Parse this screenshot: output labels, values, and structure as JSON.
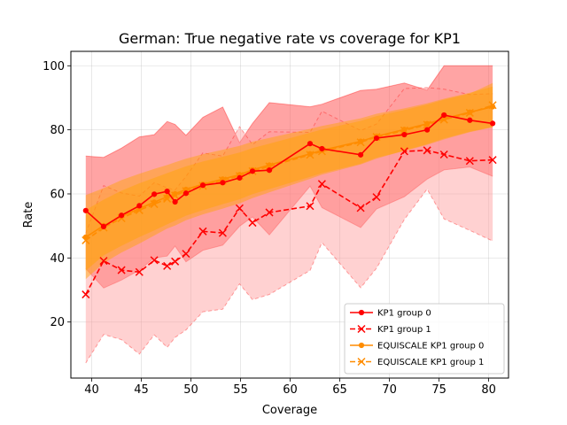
{
  "chart_data": {
    "type": "line",
    "title": "German: True negative rate vs coverage for KP1",
    "xlabel": "Coverage",
    "ylabel": "Rate",
    "xlim": [
      37.9,
      82.0
    ],
    "ylim": [
      2.5,
      104.5
    ],
    "xticks": [
      40,
      45,
      50,
      55,
      60,
      65,
      70,
      75,
      80
    ],
    "yticks": [
      20,
      40,
      60,
      80,
      100
    ],
    "grid": true,
    "legend_position": "lower-right",
    "colors": {
      "group0": "#ff0000",
      "group1": "#ff0000",
      "equi0": "#ff8c00",
      "equi1": "#ff8c00",
      "band_outer": "#ff9a9a",
      "band_inner": "#ff5a5a",
      "band_equi": "#ffa500"
    },
    "series": [
      {
        "name": "KP1 group 0",
        "line_style": "solid",
        "marker": "dot",
        "x": [
          39.4,
          41.2,
          43.0,
          44.8,
          46.3,
          47.6,
          48.4,
          49.5,
          51.2,
          53.2,
          54.9,
          56.2,
          57.9,
          62.0,
          63.2,
          67.1,
          68.7,
          71.5,
          73.8,
          75.5,
          78.1,
          80.4
        ],
        "y": [
          54.8,
          49.8,
          53.3,
          56.3,
          59.9,
          60.8,
          57.5,
          60.2,
          62.7,
          63.5,
          65.0,
          67.1,
          67.4,
          75.7,
          74.1,
          72.2,
          77.4,
          78.5,
          80.0,
          84.6,
          83.0,
          82.0
        ],
        "band_upper": [
          71.8,
          71.4,
          74.3,
          77.8,
          78.5,
          82.6,
          81.7,
          78.3,
          83.9,
          87.1,
          76.0,
          82.0,
          88.5,
          87.2,
          88.0,
          92.3,
          92.7,
          94.6,
          92.4,
          100.0,
          100.0,
          100.0
        ],
        "band_lower": [
          36.7,
          30.6,
          33.1,
          36.2,
          40.0,
          40.6,
          43.7,
          38.8,
          42.4,
          44.0,
          49.9,
          52.8,
          47.2,
          62.4,
          55.7,
          49.5,
          55.3,
          59.1,
          64.6,
          67.5,
          68.4,
          65.5
        ]
      },
      {
        "name": "KP1 group 1",
        "line_style": "dashed",
        "marker": "x",
        "x": [
          39.4,
          41.2,
          43.0,
          44.8,
          46.3,
          47.6,
          48.4,
          49.5,
          51.2,
          53.2,
          54.9,
          56.2,
          57.9,
          62.0,
          63.2,
          67.1,
          68.7,
          71.5,
          73.8,
          75.5,
          78.1,
          80.4
        ],
        "y": [
          28.6,
          39.1,
          36.2,
          35.6,
          39.3,
          37.5,
          38.9,
          41.3,
          48.3,
          47.8,
          55.5,
          51.0,
          54.2,
          56.2,
          63.1,
          55.6,
          59.0,
          73.3,
          73.6,
          72.3,
          70.3,
          70.6
        ],
        "band_upper": [
          47.7,
          62.6,
          60.3,
          59.3,
          63.5,
          61.9,
          61.2,
          65.4,
          72.8,
          71.8,
          81.0,
          75.4,
          79.4,
          79.2,
          85.8,
          79.8,
          81.8,
          92.9,
          93.2,
          92.7,
          91.0,
          91.3
        ],
        "band_lower": [
          7.2,
          16.1,
          14.5,
          10.0,
          16.0,
          12.1,
          15.2,
          17.5,
          23.2,
          24.0,
          31.9,
          27.0,
          28.6,
          36.1,
          44.8,
          30.7,
          36.8,
          52.0,
          61.5,
          52.2,
          48.6,
          45.3
        ]
      },
      {
        "name": "EQUISCALE KP1 group 0",
        "line_style": "solid",
        "marker": "dot",
        "x": [
          39.4,
          41.2,
          43.0,
          44.8,
          46.3,
          47.6,
          48.4,
          49.5,
          51.2,
          53.2,
          54.9,
          56.2,
          57.9,
          62.0,
          63.2,
          67.1,
          68.7,
          71.5,
          73.8,
          75.5,
          78.1,
          80.4
        ],
        "y": [
          46.5,
          50.1,
          53.0,
          55.4,
          57.4,
          59.1,
          60.0,
          61.4,
          63.0,
          64.6,
          66.0,
          67.5,
          69.0,
          72.5,
          73.6,
          76.4,
          78.0,
          80.1,
          81.9,
          83.5,
          85.5,
          87.2
        ],
        "band_upper": [
          59.6,
          61.8,
          64.3,
          66.3,
          67.8,
          69.0,
          69.9,
          71.0,
          72.4,
          73.8,
          75.0,
          76.3,
          77.5,
          80.3,
          81.2,
          83.6,
          85.0,
          86.7,
          88.3,
          89.7,
          91.6,
          93.5
        ],
        "band_lower": [
          33.4,
          38.4,
          41.7,
          44.5,
          47.0,
          49.2,
          50.1,
          51.8,
          53.6,
          55.4,
          57.0,
          58.7,
          60.5,
          64.7,
          66.0,
          69.2,
          71.0,
          73.5,
          75.5,
          77.3,
          79.4,
          80.9
        ]
      },
      {
        "name": "EQUISCALE KP1 group 1",
        "line_style": "dashed",
        "marker": "x",
        "x": [
          39.4,
          41.2,
          43.0,
          44.8,
          46.3,
          47.6,
          48.4,
          49.5,
          51.2,
          53.2,
          54.9,
          56.2,
          57.9,
          62.0,
          63.2,
          67.1,
          68.7,
          71.5,
          73.8,
          75.5,
          78.1,
          80.4
        ],
        "y": [
          45.5,
          49.5,
          52.4,
          54.9,
          56.8,
          58.5,
          59.5,
          60.9,
          62.5,
          64.2,
          65.6,
          67.1,
          68.6,
          72.2,
          73.3,
          76.1,
          77.8,
          79.8,
          81.6,
          83.2,
          85.3,
          87.7
        ],
        "band_upper": [
          55.0,
          58.2,
          61.0,
          63.3,
          65.0,
          66.5,
          67.4,
          68.6,
          70.1,
          71.6,
          72.9,
          74.3,
          75.7,
          79.1,
          80.1,
          82.8,
          84.3,
          86.2,
          87.9,
          89.4,
          91.3,
          94.6
        ],
        "band_lower": [
          36.0,
          40.8,
          43.8,
          46.5,
          48.6,
          50.5,
          51.6,
          53.2,
          54.9,
          56.8,
          58.3,
          59.9,
          61.5,
          65.3,
          66.5,
          69.4,
          71.3,
          73.4,
          75.3,
          77.0,
          79.3,
          80.8
        ]
      }
    ]
  }
}
